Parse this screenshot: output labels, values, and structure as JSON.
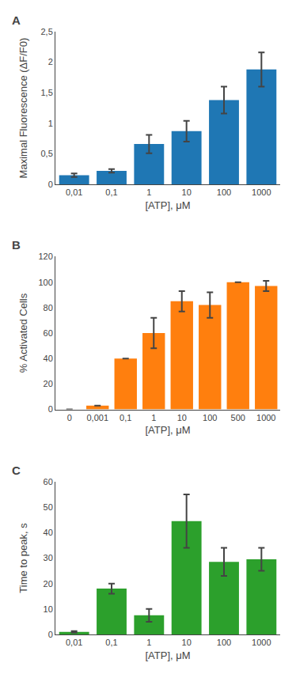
{
  "chart_data": [
    {
      "type": "bar",
      "title": "A",
      "categories": [
        "0,01",
        "0,1",
        "1",
        "10",
        "100",
        "1000"
      ],
      "values": [
        0.15,
        0.22,
        0.66,
        0.87,
        1.38,
        1.88
      ],
      "errors": [
        0.03,
        0.03,
        0.15,
        0.17,
        0.22,
        0.28
      ],
      "ylabel": "Maximal Fluorescence (ΔF/F0)",
      "xlabel": "[ATP], μM",
      "ylim": [
        0,
        2.5
      ],
      "yticks": [
        0,
        {
          "value": 0.5,
          "label": "0,5"
        },
        1,
        {
          "value": 1.5,
          "label": "1,5"
        },
        2,
        {
          "value": 2.5,
          "label": "2,5"
        }
      ],
      "grid": false
    },
    {
      "type": "bar",
      "title": "B",
      "categories": [
        "0",
        "0,001",
        "0,1",
        "1",
        "10",
        "100",
        "500",
        "1000"
      ],
      "values": [
        0,
        3,
        40,
        60,
        85,
        82,
        100,
        97
      ],
      "errors": [
        0,
        0,
        0,
        12,
        8,
        10,
        0,
        4
      ],
      "ylabel": "% Activated Cells",
      "xlabel": "[ATP], μM",
      "ylim": [
        0,
        120
      ],
      "yticks": [
        0,
        20,
        40,
        60,
        80,
        100,
        120
      ],
      "grid": false
    },
    {
      "type": "bar",
      "title": "C",
      "categories": [
        "0,01",
        "0,1",
        "1",
        "10",
        "100",
        "1000"
      ],
      "values": [
        1.0,
        18.0,
        7.5,
        44.5,
        28.5,
        29.5
      ],
      "errors": [
        0.3,
        2.0,
        2.5,
        10.5,
        5.5,
        4.5
      ],
      "ylabel": "Time to peak, s",
      "xlabel": "[ATP], μM",
      "ylim": [
        0,
        60
      ],
      "yticks": [
        0,
        10,
        20,
        30,
        40,
        50,
        60
      ],
      "grid": false
    }
  ]
}
